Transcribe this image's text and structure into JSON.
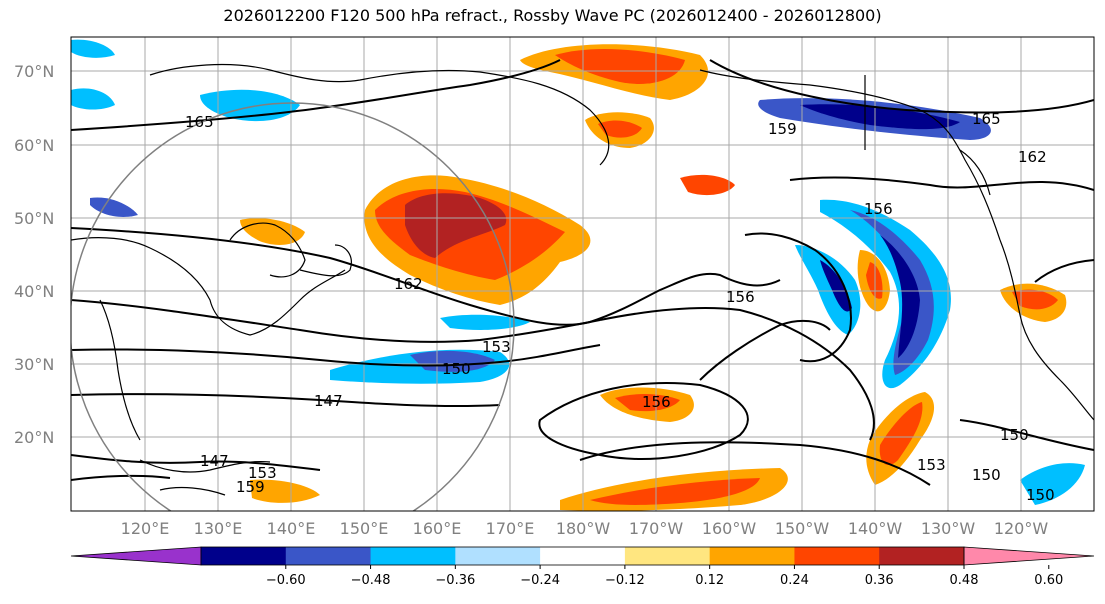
{
  "title": "2026012200 F120 500 hPa refract., Rossby Wave PC (2026012400 - 2026012800)",
  "lat_labels": [
    "70°N",
    "60°N",
    "50°N",
    "40°N",
    "30°N",
    "20°N"
  ],
  "lon_labels": [
    "120°E",
    "130°E",
    "140°E",
    "150°E",
    "160°E",
    "170°E",
    "180°W",
    "170°W",
    "160°W",
    "150°W",
    "140°W",
    "130°W",
    "120°W"
  ],
  "colorbar": {
    "colors": [
      "#9932cc",
      "#00008b",
      "#3a56c8",
      "#00bfff",
      "#b0e0ff",
      "#ffffff",
      "#ffe680",
      "#ffa500",
      "#ff4500",
      "#b22222",
      "#ff88aa"
    ],
    "ticks": [
      "−0.60",
      "−0.48",
      "−0.36",
      "−0.24",
      "−0.12",
      "0.12",
      "0.24",
      "0.36",
      "0.48",
      "0.60"
    ]
  },
  "contour_labels": [
    "165",
    "159",
    "165",
    "162",
    "156",
    "162",
    "156",
    "153",
    "150",
    "147",
    "147",
    "153",
    "159",
    "150",
    "153",
    "150",
    "150",
    "156"
  ]
}
